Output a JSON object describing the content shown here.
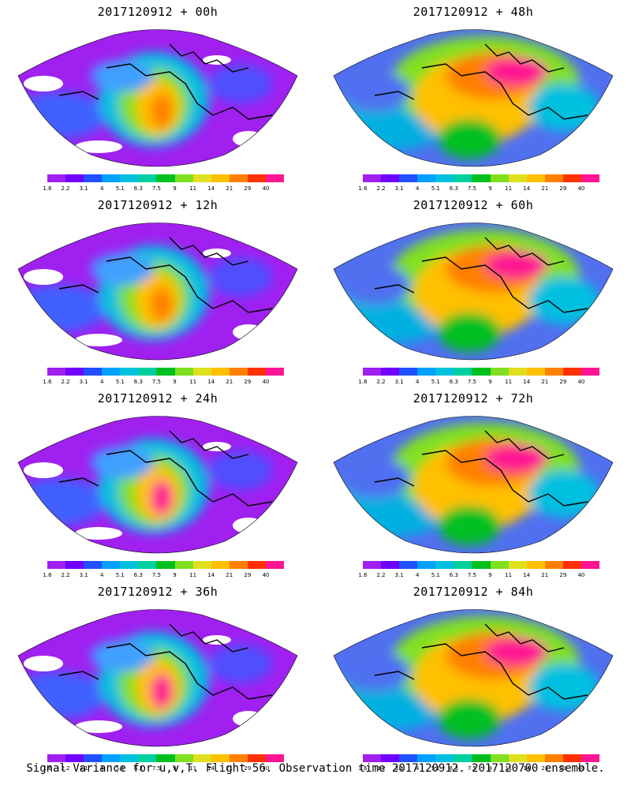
{
  "panels": [
    {
      "title": "2017120912 + 00h",
      "peak": "orange",
      "blank": true
    },
    {
      "title": "2017120912 + 48h",
      "peak": "red",
      "blank": false
    },
    {
      "title": "2017120912 + 12h",
      "peak": "orange",
      "blank": true
    },
    {
      "title": "2017120912 + 60h",
      "peak": "red",
      "blank": false
    },
    {
      "title": "2017120912 + 24h",
      "peak": "red",
      "blank": true
    },
    {
      "title": "2017120912 + 72h",
      "peak": "red",
      "blank": false
    },
    {
      "title": "2017120912 + 36h",
      "peak": "red",
      "blank": true
    },
    {
      "title": "2017120912 + 84h",
      "peak": "red",
      "blank": false
    }
  ],
  "colorbar": {
    "labels": [
      "1.6",
      "2.2",
      "3.1",
      "4",
      "5.1",
      "6.3",
      "7.5",
      "9",
      "11",
      "14",
      "21",
      "29",
      "40"
    ],
    "colors": [
      "#a020f0",
      "#7000ff",
      "#2050ff",
      "#00a0ff",
      "#00c0e0",
      "#00d0a0",
      "#00c020",
      "#80e020",
      "#e0e020",
      "#ffc000",
      "#ff8000",
      "#ff3000",
      "#ff1493"
    ]
  },
  "footer": "Signal Variance for u,v,T. Flight 56. Observation time 2017120912. 2017120700 ensemble."
}
